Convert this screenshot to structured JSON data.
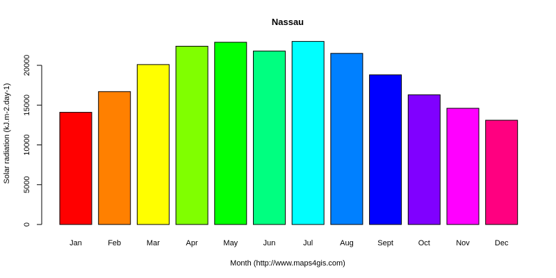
{
  "chart_data": {
    "type": "bar",
    "title": "Nassau",
    "xlabel": "Month (http://www.maps4gis.com)",
    "ylabel": "Solar radiation (kJ.m-2.day-1)",
    "categories": [
      "Jan",
      "Feb",
      "Mar",
      "Apr",
      "May",
      "Jun",
      "Jul",
      "Aug",
      "Sept",
      "Oct",
      "Nov",
      "Dec"
    ],
    "values": [
      14100,
      16700,
      20100,
      22400,
      22900,
      21800,
      23000,
      21500,
      18800,
      16300,
      14600,
      13100
    ],
    "colors": [
      "#FF0000",
      "#FF8000",
      "#FFFF00",
      "#80FF00",
      "#00FF00",
      "#00FF80",
      "#00FFFF",
      "#0080FF",
      "#0000FF",
      "#8000FF",
      "#FF00FF",
      "#FF0080"
    ],
    "yticks": [
      0,
      5000,
      10000,
      15000,
      20000
    ],
    "ylim": [
      0,
      23000
    ],
    "grid": false,
    "legend": "none"
  }
}
